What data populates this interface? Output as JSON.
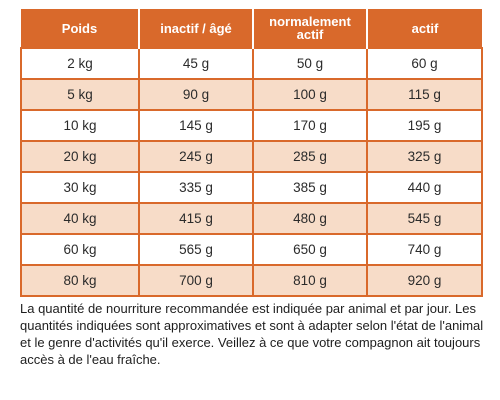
{
  "table": {
    "headers": [
      "Poids",
      "inactif / âgé",
      "normalement actif",
      "actif"
    ],
    "rows": [
      [
        "2 kg",
        "45 g",
        "50 g",
        "60 g"
      ],
      [
        "5 kg",
        "90 g",
        "100 g",
        "115 g"
      ],
      [
        "10 kg",
        "145 g",
        "170 g",
        "195 g"
      ],
      [
        "20 kg",
        "245 g",
        "285 g",
        "325 g"
      ],
      [
        "30 kg",
        "335 g",
        "385 g",
        "440 g"
      ],
      [
        "40 kg",
        "415 g",
        "480 g",
        "545 g"
      ],
      [
        "60 kg",
        "565 g",
        "650 g",
        "740 g"
      ],
      [
        "80 kg",
        "700 g",
        "810 g",
        "920 g"
      ]
    ]
  },
  "note": "La quantité de nourriture recommandée est indiquée par animal et par jour. Les quantités indiquées sont approximatives et sont à adapter selon l'état de l'animal et le genre d'activités qu'il exerce. Veillez à ce que votre compagnon ait toujours accès à de l'eau fraîche.",
  "colors": {
    "header_bg": "#d9692b",
    "row_alt_bg": "#f7dcc8"
  }
}
